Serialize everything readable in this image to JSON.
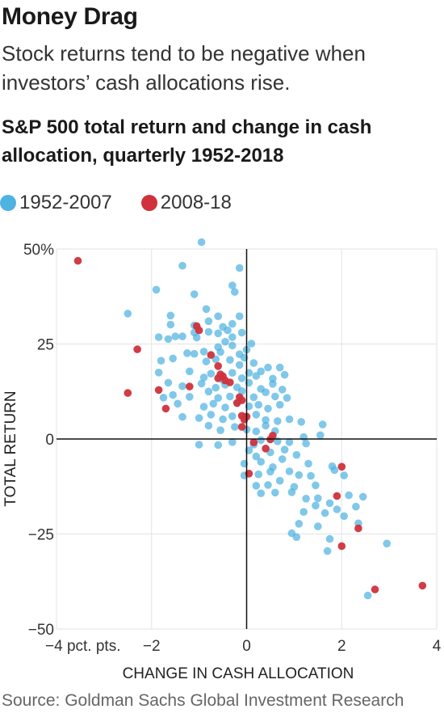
{
  "header": {
    "title": "Money Drag",
    "subtitle": "Stock returns tend to be negative when investors’ cash allocations rise.",
    "chart_title": "S&P 500 total return and change in cash allocation, quarterly 1952-2018"
  },
  "source": "Source: Goldman Sachs Global Investment Research",
  "colors": {
    "blue": "#4fb3e1",
    "red": "#d0313c",
    "grid": "#e3e3e3",
    "axis": "#111111"
  },
  "chart_data": {
    "type": "scatter",
    "title": "S&P 500 total return and change in cash allocation, quarterly 1952-2018",
    "xlabel": "CHANGE IN CASH ALLOCATION",
    "ylabel": "TOTAL RETURN",
    "xlim": [
      -4,
      4
    ],
    "ylim": [
      -50,
      50
    ],
    "x_ticks": [
      {
        "value": -4,
        "label": "−4 pct. pts."
      },
      {
        "value": -2,
        "label": "−2"
      },
      {
        "value": 0,
        "label": "0"
      },
      {
        "value": 2,
        "label": "2"
      },
      {
        "value": 4,
        "label": "4"
      }
    ],
    "y_ticks": [
      {
        "value": 50,
        "label": "50%"
      },
      {
        "value": 25,
        "label": "25"
      },
      {
        "value": 0,
        "label": "0"
      },
      {
        "value": -25,
        "label": "−25"
      },
      {
        "value": -50,
        "label": "−50"
      }
    ],
    "grid": true,
    "legend_position": "top-left",
    "series": [
      {
        "name": "1952-2007",
        "color": "#4fb3e1",
        "points": [
          [
            -0.95,
            51.8
          ],
          [
            -0.15,
            45.0
          ],
          [
            -1.35,
            45.6
          ],
          [
            -1.9,
            39.3
          ],
          [
            -1.1,
            38.1
          ],
          [
            -0.3,
            40.4
          ],
          [
            -0.25,
            38.7
          ],
          [
            -2.5,
            33.0
          ],
          [
            -1.6,
            32.5
          ],
          [
            -0.85,
            34.2
          ],
          [
            -0.6,
            32.3
          ],
          [
            -0.15,
            32.3
          ],
          [
            -1.6,
            30.1
          ],
          [
            -1.1,
            29.9
          ],
          [
            -0.8,
            31.0
          ],
          [
            -0.5,
            29.5
          ],
          [
            -0.3,
            30.3
          ],
          [
            -1.85,
            26.8
          ],
          [
            -1.65,
            26.3
          ],
          [
            -1.5,
            27.0
          ],
          [
            -1.35,
            27.0
          ],
          [
            -1.1,
            28.0
          ],
          [
            -1.05,
            26.7
          ],
          [
            -0.8,
            28.2
          ],
          [
            -0.6,
            27.8
          ],
          [
            -0.4,
            28.6
          ],
          [
            -0.1,
            28.0
          ],
          [
            -0.45,
            25.6
          ],
          [
            -0.3,
            26.8
          ],
          [
            0.1,
            25.1
          ],
          [
            -1.25,
            22.6
          ],
          [
            -1.1,
            22.4
          ],
          [
            -0.9,
            23.0
          ],
          [
            -0.6,
            24.2
          ],
          [
            -0.55,
            22.9
          ],
          [
            -0.3,
            24.6
          ],
          [
            -0.15,
            22.3
          ],
          [
            0.0,
            23.5
          ],
          [
            -1.8,
            20.6
          ],
          [
            -1.55,
            21.2
          ],
          [
            -0.85,
            20.4
          ],
          [
            -0.65,
            21.0
          ],
          [
            -0.35,
            20.8
          ],
          [
            -0.15,
            19.5
          ],
          [
            -0.05,
            21.4
          ],
          [
            0.15,
            20.0
          ],
          [
            0.45,
            18.8
          ],
          [
            0.7,
            18.8
          ],
          [
            -1.85,
            17.5
          ],
          [
            -1.2,
            17.8
          ],
          [
            -0.9,
            16.2
          ],
          [
            -0.75,
            17.2
          ],
          [
            -0.5,
            15.5
          ],
          [
            -0.3,
            17.4
          ],
          [
            -0.1,
            16.0
          ],
          [
            0.05,
            17.4
          ],
          [
            0.2,
            16.6
          ],
          [
            0.3,
            17.8
          ],
          [
            0.55,
            15.9
          ],
          [
            0.8,
            16.9
          ],
          [
            -1.65,
            14.8
          ],
          [
            -1.35,
            13.9
          ],
          [
            -0.95,
            14.6
          ],
          [
            -0.65,
            13.5
          ],
          [
            -0.45,
            14.3
          ],
          [
            -0.2,
            13.6
          ],
          [
            0.05,
            14.8
          ],
          [
            0.3,
            13.2
          ],
          [
            0.55,
            14.5
          ],
          [
            0.75,
            13.0
          ],
          [
            -1.75,
            10.9
          ],
          [
            -1.55,
            11.6
          ],
          [
            -1.2,
            11.1
          ],
          [
            -0.8,
            12.5
          ],
          [
            -0.6,
            10.8
          ],
          [
            -0.35,
            11.2
          ],
          [
            -0.1,
            12.6
          ],
          [
            0.15,
            11.0
          ],
          [
            0.4,
            12.3
          ],
          [
            0.6,
            11.2
          ],
          [
            0.85,
            10.8
          ],
          [
            -1.45,
            9.3
          ],
          [
            -0.9,
            8.5
          ],
          [
            -0.7,
            9.3
          ],
          [
            -0.45,
            8.3
          ],
          [
            -0.2,
            9.4
          ],
          [
            0.05,
            8.6
          ],
          [
            0.25,
            9.0
          ],
          [
            0.45,
            8.0
          ],
          [
            0.7,
            9.0
          ],
          [
            -1.35,
            5.8
          ],
          [
            -1.0,
            5.5
          ],
          [
            -0.75,
            6.4
          ],
          [
            -0.5,
            5.2
          ],
          [
            -0.3,
            6.0
          ],
          [
            -0.05,
            5.8
          ],
          [
            0.2,
            6.4
          ],
          [
            0.4,
            5.0
          ],
          [
            0.65,
            4.7
          ],
          [
            0.9,
            5.2
          ],
          [
            1.15,
            4.5
          ],
          [
            1.6,
            3.8
          ],
          [
            -0.8,
            3.5
          ],
          [
            -0.55,
            2.3
          ],
          [
            -0.25,
            3.2
          ],
          [
            0.0,
            2.5
          ],
          [
            0.2,
            2.0
          ],
          [
            0.4,
            3.5
          ],
          [
            0.6,
            2.1
          ],
          [
            1.55,
            1.0
          ],
          [
            -1.0,
            -1.5
          ],
          [
            -0.6,
            -1.6
          ],
          [
            -0.3,
            -0.8
          ],
          [
            0.15,
            -1.5
          ],
          [
            0.3,
            -0.3
          ],
          [
            0.65,
            -0.6
          ],
          [
            0.9,
            -0.8
          ],
          [
            1.2,
            0.5
          ],
          [
            1.25,
            -1.2
          ],
          [
            0.05,
            -3.0
          ],
          [
            0.2,
            -4.6
          ],
          [
            0.5,
            -3.5
          ],
          [
            0.8,
            -2.8
          ],
          [
            1.05,
            -4.2
          ],
          [
            -0.05,
            -6.5
          ],
          [
            0.3,
            -6.0
          ],
          [
            0.55,
            -7.4
          ],
          [
            0.75,
            -5.3
          ],
          [
            1.3,
            -6.5
          ],
          [
            1.8,
            -7.2
          ],
          [
            -0.05,
            -9.6
          ],
          [
            0.25,
            -9.3
          ],
          [
            0.5,
            -8.6
          ],
          [
            0.9,
            -8.5
          ],
          [
            1.1,
            -9.5
          ],
          [
            1.35,
            -9.7
          ],
          [
            1.85,
            -8.2
          ],
          [
            2.05,
            -9.6
          ],
          [
            0.2,
            -12.3
          ],
          [
            0.45,
            -12.1
          ],
          [
            0.7,
            -11.0
          ],
          [
            1.0,
            -12.6
          ],
          [
            1.45,
            -12.2
          ],
          [
            0.3,
            -14.3
          ],
          [
            0.6,
            -14.1
          ],
          [
            0.95,
            -14.0
          ],
          [
            1.25,
            -15.7
          ],
          [
            1.5,
            -15.6
          ],
          [
            1.75,
            -16.9
          ],
          [
            2.15,
            -14.8
          ],
          [
            2.45,
            -15.2
          ],
          [
            1.45,
            -17.5
          ],
          [
            1.9,
            -18.5
          ],
          [
            2.3,
            -17.8
          ],
          [
            1.2,
            -19.2
          ],
          [
            1.65,
            -19.5
          ],
          [
            2.05,
            -20.3
          ],
          [
            1.1,
            -22.3
          ],
          [
            1.5,
            -23.0
          ],
          [
            2.35,
            -22.2
          ],
          [
            0.95,
            -24.8
          ],
          [
            1.75,
            -26.3
          ],
          [
            2.95,
            -27.5
          ],
          [
            1.05,
            -25.8
          ],
          [
            1.7,
            -29.5
          ],
          [
            2.55,
            -41.2
          ]
        ]
      },
      {
        "name": "2008-18",
        "color": "#d0313c",
        "points": [
          [
            -3.55,
            46.9
          ],
          [
            -2.3,
            23.6
          ],
          [
            -2.5,
            12.1
          ],
          [
            -1.85,
            12.9
          ],
          [
            -1.7,
            8.0
          ],
          [
            -1.05,
            29.7
          ],
          [
            -1.0,
            28.6
          ],
          [
            -1.2,
            13.8
          ],
          [
            -0.75,
            22.1
          ],
          [
            -0.6,
            19.2
          ],
          [
            -0.55,
            17.0
          ],
          [
            -0.6,
            16.0
          ],
          [
            -0.5,
            16.5
          ],
          [
            -0.45,
            15.4
          ],
          [
            -0.35,
            14.9
          ],
          [
            -0.15,
            11.0
          ],
          [
            -0.1,
            10.2
          ],
          [
            -0.2,
            9.5
          ],
          [
            -0.1,
            6.1
          ],
          [
            0.0,
            5.9
          ],
          [
            -0.05,
            5.1
          ],
          [
            -0.1,
            3.2
          ],
          [
            0.4,
            -2.5
          ],
          [
            0.5,
            -0.1
          ],
          [
            0.55,
            0.9
          ],
          [
            0.15,
            -0.9
          ],
          [
            0.05,
            -9.1
          ],
          [
            2.0,
            -7.3
          ],
          [
            1.9,
            -15.0
          ],
          [
            2.35,
            -23.5
          ],
          [
            2.0,
            -28.2
          ],
          [
            2.7,
            -39.6
          ],
          [
            3.7,
            -38.6
          ]
        ]
      }
    ]
  }
}
